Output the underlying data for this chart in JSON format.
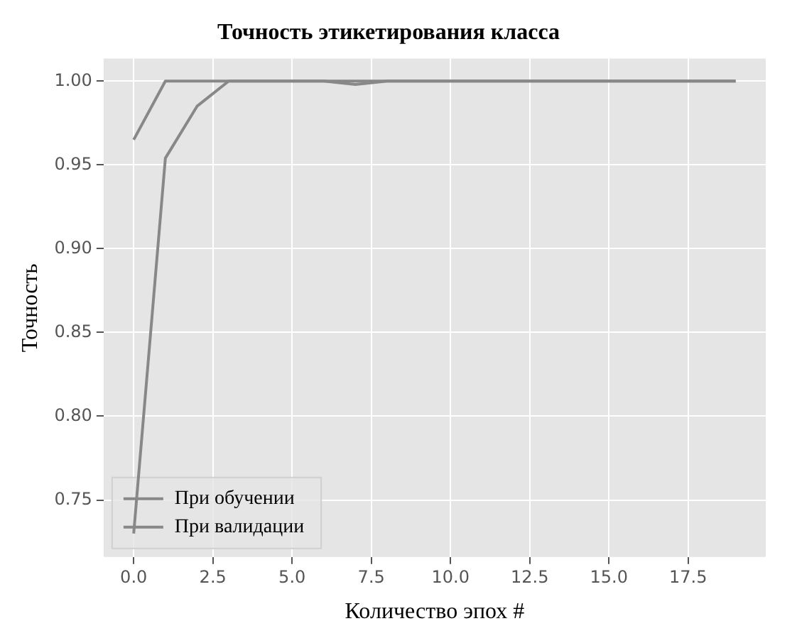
{
  "chart_data": {
    "type": "line",
    "title": "Точность этикетирования класса",
    "xlabel": "Количество эпох #",
    "ylabel": "Точность",
    "x": [
      0,
      1,
      2,
      3,
      4,
      5,
      6,
      7,
      8,
      9,
      10,
      11,
      12,
      13,
      14,
      15,
      16,
      17,
      18,
      19
    ],
    "series": [
      {
        "name": "При обучении",
        "color": "#888888",
        "values": [
          0.73,
          0.954,
          0.985,
          1.0,
          1.0,
          1.0,
          1.0,
          1.0,
          1.0,
          1.0,
          1.0,
          1.0,
          1.0,
          1.0,
          1.0,
          1.0,
          1.0,
          1.0,
          1.0,
          1.0
        ]
      },
      {
        "name": "При валидации",
        "color": "#888888",
        "values": [
          0.965,
          1.0,
          1.0,
          1.0,
          1.0,
          1.0,
          1.0,
          0.998,
          1.0,
          1.0,
          1.0,
          1.0,
          1.0,
          1.0,
          1.0,
          1.0,
          1.0,
          1.0,
          1.0,
          1.0
        ]
      }
    ],
    "xlim": [
      -0.95,
      19.95
    ],
    "xticks": [
      {
        "value": 0,
        "label": "0.0"
      },
      {
        "value": 2.5,
        "label": "2.5"
      },
      {
        "value": 5,
        "label": "5.0"
      },
      {
        "value": 7.5,
        "label": "7.5"
      },
      {
        "value": 10,
        "label": "10.0"
      },
      {
        "value": 12.5,
        "label": "12.5"
      },
      {
        "value": 15,
        "label": "15.0"
      },
      {
        "value": 17.5,
        "label": "17.5"
      }
    ],
    "ylim": [
      0.716,
      1.0135
    ],
    "yticks": [
      0.75,
      {
        "value": 0.8,
        "label": "0.80"
      },
      0.85,
      {
        "value": 0.9,
        "label": "0.90"
      },
      0.95,
      {
        "value": 1.0,
        "label": "1.00"
      }
    ],
    "grid": true,
    "legend": "bottom left",
    "marker": "none",
    "line_style": "solid"
  }
}
